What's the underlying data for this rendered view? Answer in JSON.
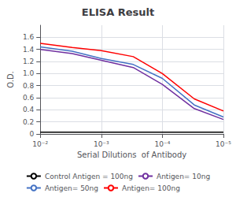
{
  "chart_data": {
    "type": "line",
    "title": "ELISA Result",
    "xlabel": "Serial Dilutions  of Antibody",
    "ylabel": "O.D.",
    "x": [
      0.01,
      0.003,
      0.001,
      0.0003,
      0.0001,
      3e-05,
      1e-05
    ],
    "series": [
      {
        "name": "Control Antigen = 100ng",
        "color": "#000000",
        "values": [
          0.03,
          0.03,
          0.03,
          0.03,
          0.03,
          0.03,
          0.03
        ]
      },
      {
        "name": "Antigen= 10ng",
        "color": "#7030A0",
        "values": [
          1.4,
          1.33,
          1.22,
          1.1,
          0.82,
          0.42,
          0.24
        ]
      },
      {
        "name": "Antigen= 50ng",
        "color": "#4472C4",
        "values": [
          1.44,
          1.37,
          1.25,
          1.15,
          0.92,
          0.48,
          0.28
        ]
      },
      {
        "name": "Antigen= 100ng",
        "color": "#FF0000",
        "values": [
          1.5,
          1.43,
          1.38,
          1.28,
          1.0,
          0.58,
          0.38
        ]
      }
    ],
    "log": "x",
    "xlim": [
      0.01,
      1e-05
    ],
    "xticks": [
      {
        "value": 0.01,
        "label": "10⁻²"
      },
      {
        "value": 0.001,
        "label": "10⁻³"
      },
      {
        "value": 0.0001,
        "label": "10⁻⁴"
      },
      {
        "value": 1e-05,
        "label": "10⁻⁵"
      }
    ],
    "ylim": [
      0,
      1.8
    ],
    "yticks": [
      0,
      0.2,
      0.4,
      0.6,
      0.8,
      {
        "value": 1.0,
        "label": "1.0"
      },
      1.2,
      1.4,
      1.6
    ],
    "grid": true,
    "legend": "bottom"
  }
}
